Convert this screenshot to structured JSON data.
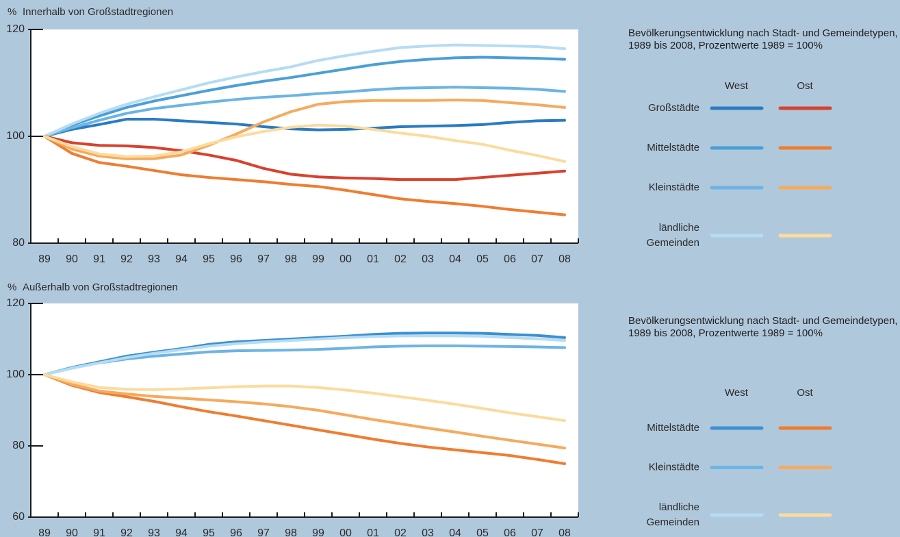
{
  "chart_data": [
    {
      "type": "line",
      "title": "Innerhalb von Großstadtregionen",
      "ylabel": "%",
      "legend_title": "Bevölkerungsentwicklung nach Stadt- und Gemeindetypen, 1989 bis 2008, Prozentwerte 1989 = 100%",
      "categories": [
        "89",
        "90",
        "91",
        "92",
        "93",
        "94",
        "95",
        "96",
        "97",
        "98",
        "99",
        "00",
        "01",
        "02",
        "03",
        "04",
        "05",
        "06",
        "07",
        "08"
      ],
      "ylim": [
        80,
        120
      ],
      "yticks": [
        80,
        100,
        120
      ],
      "series": [
        {
          "name": "Großstädte",
          "region": "West",
          "color": "#2b7bc0",
          "values": [
            100,
            101.3,
            102.2,
            103.2,
            103.2,
            102.9,
            102.6,
            102.3,
            101.8,
            101.4,
            101.2,
            101.3,
            101.5,
            101.8,
            101.9,
            102.0,
            102.2,
            102.6,
            102.9,
            103.0
          ]
        },
        {
          "name": "Mittelstädte",
          "region": "West",
          "color": "#4b9fd8",
          "values": [
            100,
            102.1,
            103.8,
            105.4,
            106.6,
            107.6,
            108.6,
            109.5,
            110.3,
            111.0,
            111.8,
            112.6,
            113.4,
            114.0,
            114.4,
            114.7,
            114.8,
            114.7,
            114.6,
            114.4
          ]
        },
        {
          "name": "Kleinstädte",
          "region": "West",
          "color": "#6cb4e4",
          "values": [
            100,
            101.6,
            103.0,
            104.3,
            105.2,
            105.8,
            106.4,
            106.9,
            107.3,
            107.6,
            108.0,
            108.3,
            108.7,
            109.0,
            109.1,
            109.2,
            109.1,
            109.0,
            108.8,
            108.4
          ]
        },
        {
          "name": "ländliche Gemeinden",
          "region": "West",
          "color": "#b5dcf3",
          "values": [
            100,
            102.3,
            104.3,
            106.0,
            107.4,
            108.7,
            110.0,
            111.1,
            112.1,
            113.0,
            114.2,
            115.1,
            115.9,
            116.6,
            116.9,
            117.1,
            117.0,
            116.9,
            116.8,
            116.4
          ]
        },
        {
          "name": "Großstädte",
          "region": "Ost",
          "color": "#d8412e",
          "values": [
            100,
            98.8,
            98.3,
            98.2,
            97.9,
            97.3,
            96.5,
            95.5,
            94.0,
            92.9,
            92.4,
            92.2,
            92.1,
            91.9,
            91.9,
            91.9,
            92.3,
            92.7,
            93.1,
            93.5
          ]
        },
        {
          "name": "Mittelstädte",
          "region": "Ost",
          "color": "#ef7d31",
          "values": [
            100,
            96.8,
            95.1,
            94.4,
            93.6,
            92.8,
            92.3,
            91.9,
            91.5,
            91.0,
            90.6,
            89.9,
            89.1,
            88.3,
            87.8,
            87.4,
            86.9,
            86.3,
            85.8,
            85.3
          ]
        },
        {
          "name": "Kleinstädte",
          "region": "Ost",
          "color": "#f5aa5e",
          "values": [
            100,
            97.6,
            96.3,
            95.8,
            95.8,
            96.5,
            98.3,
            100.4,
            102.7,
            104.6,
            106.0,
            106.5,
            106.7,
            106.7,
            106.7,
            106.8,
            106.7,
            106.3,
            105.9,
            105.4
          ]
        },
        {
          "name": "ländliche Gemeinden",
          "region": "Ost",
          "color": "#fbdb9e",
          "values": [
            100,
            98.1,
            96.7,
            96.2,
            96.3,
            97.1,
            98.6,
            99.9,
            100.9,
            101.7,
            102.1,
            101.9,
            101.3,
            100.6,
            100.0,
            99.2,
            98.5,
            97.4,
            96.4,
            95.3
          ]
        }
      ]
    },
    {
      "type": "line",
      "title": "Außerhalb von Großstadtregionen",
      "ylabel": "%",
      "legend_title": "Bevölkerungsentwicklung nach Stadt- und Gemeindetypen, 1989 bis 2008, Prozentwerte 1989 = 100%",
      "categories": [
        "89",
        "90",
        "91",
        "92",
        "93",
        "94",
        "95",
        "96",
        "97",
        "98",
        "99",
        "00",
        "01",
        "02",
        "03",
        "04",
        "05",
        "06",
        "07",
        "08"
      ],
      "ylim": [
        60,
        120
      ],
      "yticks": [
        60,
        80,
        100,
        120
      ],
      "series": [
        {
          "name": "Mittelstädte",
          "region": "West",
          "color": "#3c90d0",
          "values": [
            100,
            102.0,
            103.6,
            105.2,
            106.3,
            107.3,
            108.5,
            109.2,
            109.6,
            110.0,
            110.4,
            110.8,
            111.3,
            111.6,
            111.7,
            111.7,
            111.6,
            111.3,
            111.0,
            110.4
          ]
        },
        {
          "name": "Kleinstädte",
          "region": "West",
          "color": "#6cb4e4",
          "values": [
            100,
            101.9,
            103.3,
            104.4,
            105.2,
            105.8,
            106.4,
            106.7,
            106.8,
            106.9,
            107.1,
            107.4,
            107.8,
            108.0,
            108.1,
            108.1,
            108.0,
            107.9,
            107.8,
            107.6
          ]
        },
        {
          "name": "ländliche Gemeinden",
          "region": "West",
          "color": "#b5dcf3",
          "values": [
            100,
            101.8,
            103.3,
            104.8,
            106.0,
            107.0,
            108.0,
            108.7,
            109.2,
            109.6,
            110.0,
            110.4,
            110.7,
            110.9,
            110.9,
            110.9,
            110.8,
            110.4,
            110.1,
            109.6
          ]
        },
        {
          "name": "Mittelstädte",
          "region": "Ost",
          "color": "#ef7d31",
          "values": [
            100,
            97.0,
            95.0,
            93.8,
            92.5,
            91.0,
            89.6,
            88.4,
            87.1,
            85.8,
            84.5,
            83.2,
            81.9,
            80.7,
            79.7,
            78.9,
            78.1,
            77.3,
            76.2,
            75.0
          ]
        },
        {
          "name": "Kleinstädte",
          "region": "Ost",
          "color": "#f5aa5e",
          "values": [
            100,
            97.3,
            95.4,
            94.6,
            93.9,
            93.4,
            92.9,
            92.4,
            91.8,
            91.0,
            90.0,
            88.7,
            87.4,
            86.2,
            85.0,
            83.9,
            82.7,
            81.6,
            80.5,
            79.4
          ]
        },
        {
          "name": "ländliche Gemeinden",
          "region": "Ost",
          "color": "#fbdb9e",
          "values": [
            100,
            98.0,
            96.4,
            95.9,
            95.8,
            96.0,
            96.3,
            96.6,
            96.8,
            96.8,
            96.4,
            95.7,
            94.8,
            93.8,
            92.8,
            91.7,
            90.5,
            89.3,
            88.2,
            87.1
          ]
        }
      ]
    }
  ]
}
